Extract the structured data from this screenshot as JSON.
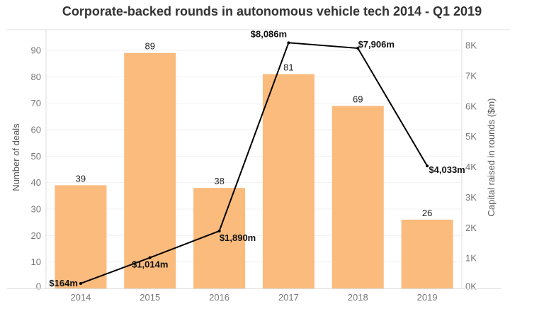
{
  "chart_data": {
    "type": "bar",
    "title": "Corporate-backed rounds in autonomous vehicle tech 2014 - Q1 2019",
    "categories": [
      "2014",
      "2015",
      "2016",
      "2017",
      "2018",
      "2019"
    ],
    "xlabel": "",
    "ylabel": "Number of deals",
    "y2label": "Capital raised in rounds ($m)",
    "ylim": [
      0,
      90
    ],
    "y2lim": [
      0,
      8000
    ],
    "yticks": [
      0,
      10,
      20,
      30,
      40,
      50,
      60,
      70,
      80,
      90
    ],
    "y2ticks": [
      "0K",
      "1K",
      "2K",
      "3K",
      "4K",
      "5K",
      "6K",
      "7K",
      "8K"
    ],
    "grid": true,
    "series": [
      {
        "name": "Number of deals",
        "type": "bar",
        "axis": "left",
        "color": "#FBBB7D",
        "values": [
          39,
          89,
          38,
          81,
          69,
          26
        ],
        "labels": [
          "39",
          "89",
          "38",
          "81",
          "69",
          "26"
        ]
      },
      {
        "name": "Capital raised in rounds ($m)",
        "type": "line",
        "axis": "right",
        "color": "#000000",
        "values": [
          164,
          1014,
          1890,
          8086,
          7906,
          4033
        ],
        "labels": [
          "$164m",
          "$1,014m",
          "$1,890m",
          "$8,086m",
          "$7,906m",
          "$4,033m"
        ]
      }
    ]
  }
}
